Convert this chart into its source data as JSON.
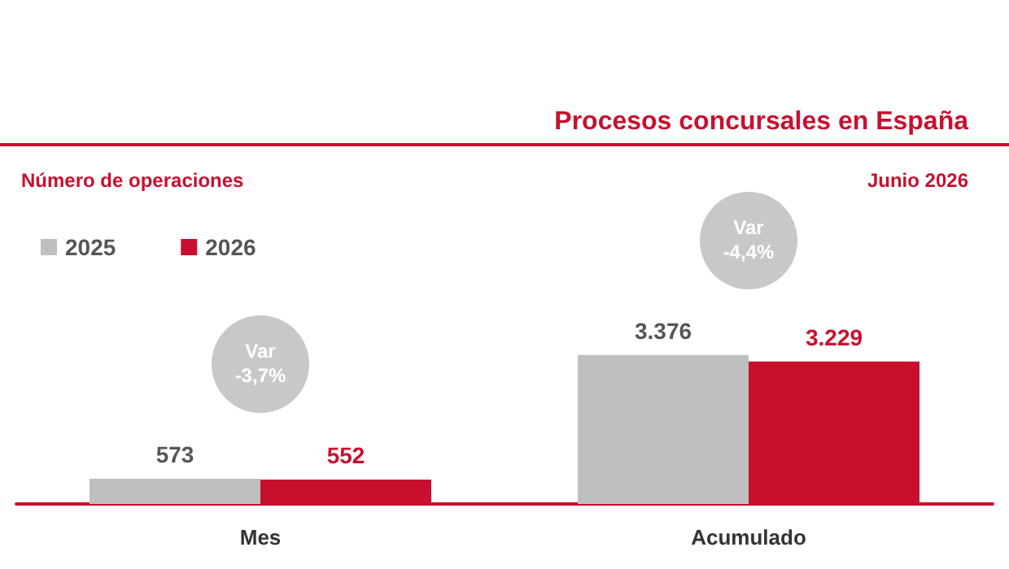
{
  "chart_data": {
    "type": "bar",
    "title": "Procesos concursales en España",
    "subtitle": "Número de operaciones",
    "annotations": [
      "Junio 2026",
      "Var\n-3,7%",
      "Var\n-4,4%"
    ],
    "categories": [
      "Mes",
      "Acumulado"
    ],
    "series": [
      {
        "name": "2025",
        "color": "#bfbfbf",
        "values": [
          573,
          3376
        ],
        "value_labels": [
          "573",
          "3.376"
        ]
      },
      {
        "name": "2026",
        "color": "#c8102e",
        "values": [
          552,
          3229
        ],
        "value_labels": [
          "552",
          "3.229"
        ]
      }
    ],
    "legend": "top left",
    "grid": false
  }
}
